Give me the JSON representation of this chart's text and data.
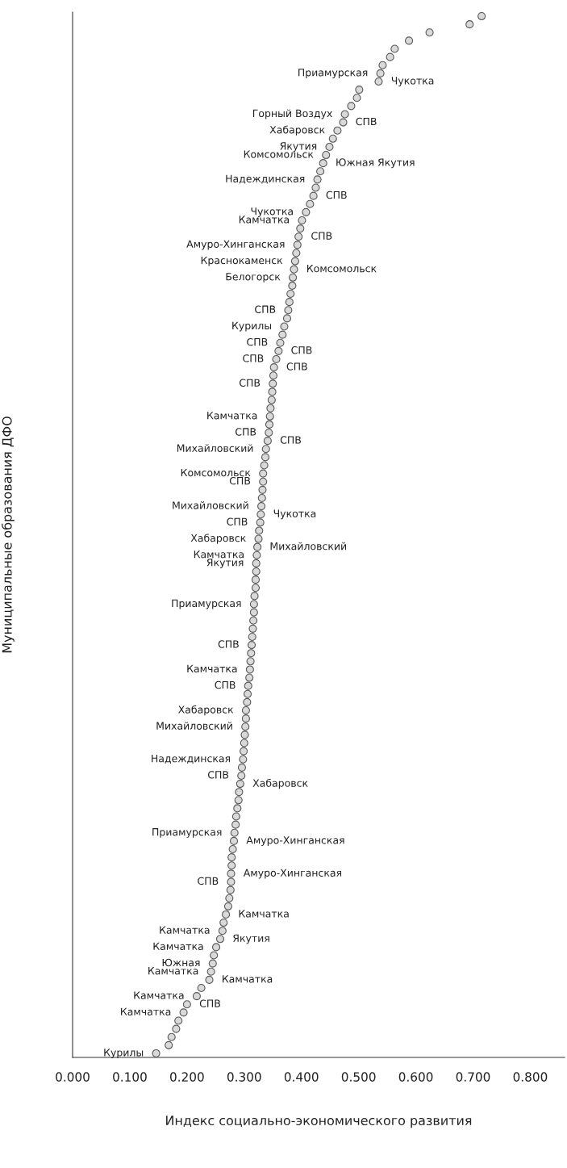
{
  "chart_data": {
    "type": "scatter",
    "orientation": "horizontal",
    "marker": "circle",
    "tick_labels": "x",
    "xlabel": "Индекс социально-экономического развития",
    "ylabel": "Муниципальные образования ДФО",
    "xlim": [
      0,
      0.86
    ],
    "xticks": [
      {
        "value": 0,
        "label": "0.000"
      },
      {
        "value": 0.1,
        "label": "0.100"
      },
      {
        "value": 0.2,
        "label": "0.200"
      },
      {
        "value": 0.3,
        "label": "0.300"
      },
      {
        "value": 0.4,
        "label": "0.400"
      },
      {
        "value": 0.5,
        "label": "0.500"
      },
      {
        "value": 0.6,
        "label": "0.600"
      },
      {
        "value": 0.7,
        "label": "0.700"
      },
      {
        "value": 0.8,
        "label": "0.800"
      }
    ],
    "categories": [
      null,
      null,
      null,
      null,
      null,
      null,
      null,
      null,
      null,
      null,
      null,
      null,
      null,
      null,
      null,
      null,
      null,
      null,
      null,
      null,
      null,
      null,
      null,
      null,
      null,
      null,
      null,
      null,
      null,
      null,
      null,
      null,
      null,
      null,
      null,
      null,
      null,
      null,
      null,
      null,
      null,
      null,
      null,
      null,
      null,
      null,
      null,
      null,
      null,
      null,
      null,
      null,
      null,
      null,
      null,
      null,
      null,
      null,
      null,
      null,
      null,
      null,
      null,
      null,
      null,
      null,
      null,
      null,
      null,
      null,
      null,
      null,
      null,
      null,
      null,
      null,
      null,
      null,
      null,
      null,
      null,
      null,
      null,
      null,
      null,
      null,
      null,
      null,
      null,
      null,
      null,
      null,
      null,
      null,
      null,
      null,
      null,
      null,
      null,
      null,
      null,
      null,
      null,
      null,
      null,
      null,
      null,
      null,
      null,
      null,
      null,
      null,
      null,
      null,
      null,
      null,
      null,
      null,
      null,
      null,
      null,
      null,
      null,
      null,
      null,
      null,
      null,
      null
    ],
    "series": [
      {
        "color": "#d9d9d9",
        "values": [
          0.715,
          0.694,
          0.624,
          0.588,
          0.563,
          0.555,
          0.542,
          0.538,
          null,
          0.501,
          0.497,
          0.487,
          0.476,
          null,
          0.463,
          0.455,
          0.449,
          0.443,
          null,
          0.433,
          0.428,
          0.425,
          null,
          0.415,
          0.408,
          0.401,
          0.398,
          null,
          0.393,
          0.391,
          0.389,
          null,
          0.385,
          0.384,
          0.381,
          0.379,
          0.377,
          0.375,
          0.37,
          0.367,
          0.363,
          null,
          0.356,
          null,
          0.351,
          0.35,
          0.349,
          0.348,
          0.346,
          0.345,
          0.344,
          0.343,
          null,
          0.338,
          0.337,
          0.335,
          0.333,
          0.333,
          0.332,
          0.331,
          0.33,
          null,
          0.328,
          0.326,
          0.325,
          null,
          0.322,
          0.321,
          0.321,
          0.32,
          0.32,
          0.318,
          0.317,
          0.317,
          0.316,
          0.315,
          0.314,
          0.313,
          0.312,
          0.311,
          0.31,
          0.309,
          0.307,
          0.306,
          0.305,
          0.303,
          0.303,
          0.302,
          0.301,
          0.3,
          0.299,
          0.298,
          0.296,
          0.295,
          null,
          0.291,
          0.29,
          0.288,
          0.286,
          0.285,
          0.283,
          null,
          0.28,
          0.278,
          0.278,
          null,
          0.277,
          0.276,
          0.274,
          0.272,
          null,
          0.264,
          0.262,
          null,
          0.251,
          0.247,
          0.245,
          0.242,
          null,
          0.225,
          0.217,
          null,
          0.194,
          0.185,
          0.181,
          0.173,
          0.168,
          0.146
        ],
        "value_labels": [
          null,
          null,
          null,
          null,
          null,
          null,
          null,
          "Приамурская",
          null,
          null,
          null,
          null,
          "Горный Воздух",
          null,
          "Хабаровск",
          null,
          "Якутия",
          "Комсомольск",
          null,
          null,
          "Надеждинская",
          null,
          null,
          null,
          "Чукотка",
          "Камчатка",
          null,
          null,
          "Амуро-Хинганская",
          null,
          "Краснокаменск",
          null,
          "Белогорск",
          null,
          null,
          null,
          "СПВ",
          null,
          "Курилы",
          null,
          "СПВ",
          null,
          "СПВ",
          null,
          null,
          "СПВ",
          null,
          null,
          null,
          "Камчатка",
          null,
          "СПВ",
          null,
          "Михайловский",
          null,
          null,
          "Комсомольск",
          "СПВ",
          null,
          null,
          "Михайловский",
          null,
          "СПВ",
          null,
          "Хабаровск",
          null,
          "Камчатка",
          "Якутия",
          null,
          null,
          null,
          null,
          "Приамурская",
          null,
          null,
          null,
          null,
          "СПВ",
          null,
          null,
          "Камчатка",
          null,
          "СПВ",
          null,
          null,
          "Хабаровск",
          null,
          "Михайловский",
          null,
          null,
          null,
          "Надеждинская",
          null,
          "СПВ",
          null,
          null,
          null,
          null,
          null,
          null,
          "Приамурская",
          null,
          null,
          null,
          null,
          null,
          "СПВ",
          null,
          null,
          null,
          null,
          null,
          "Камчатка",
          null,
          "Камчатка",
          null,
          "Южная",
          "Камчатка",
          null,
          null,
          "Камчатка",
          null,
          "Камчатка",
          null,
          null,
          null,
          null,
          "Курилы"
        ]
      },
      {
        "color": "#d9d9d9",
        "values": [
          null,
          null,
          null,
          null,
          null,
          null,
          null,
          null,
          0.535,
          null,
          null,
          null,
          null,
          0.473,
          null,
          null,
          null,
          null,
          0.438,
          null,
          null,
          null,
          0.421,
          null,
          null,
          null,
          null,
          0.395,
          null,
          null,
          null,
          0.387,
          null,
          null,
          null,
          null,
          null,
          null,
          null,
          null,
          null,
          0.36,
          null,
          0.352,
          null,
          null,
          null,
          null,
          null,
          null,
          null,
          null,
          0.341,
          null,
          null,
          null,
          null,
          null,
          null,
          null,
          null,
          0.329,
          null,
          null,
          null,
          0.323,
          null,
          null,
          null,
          null,
          null,
          null,
          null,
          null,
          null,
          null,
          null,
          null,
          null,
          null,
          null,
          null,
          null,
          null,
          null,
          null,
          null,
          null,
          null,
          null,
          null,
          null,
          null,
          null,
          0.293,
          null,
          null,
          null,
          null,
          null,
          null,
          0.282,
          null,
          null,
          null,
          0.277,
          null,
          null,
          null,
          null,
          0.268,
          null,
          null,
          0.258,
          null,
          null,
          null,
          null,
          0.239,
          null,
          null,
          0.2,
          null,
          null,
          null,
          null,
          null,
          null
        ],
        "value_labels": [
          null,
          null,
          null,
          null,
          null,
          null,
          null,
          null,
          "Чукотка",
          null,
          null,
          null,
          null,
          "СПВ",
          null,
          null,
          null,
          null,
          "Южная Якутия",
          null,
          null,
          null,
          "СПВ",
          null,
          null,
          null,
          null,
          "СПВ",
          null,
          null,
          null,
          "Комсомольск",
          null,
          null,
          null,
          null,
          null,
          null,
          null,
          null,
          null,
          "СПВ",
          null,
          "СПВ",
          null,
          null,
          null,
          null,
          null,
          null,
          null,
          null,
          "СПВ",
          null,
          null,
          null,
          null,
          null,
          null,
          null,
          null,
          "Чукотка",
          null,
          null,
          null,
          "Михайловский",
          null,
          null,
          null,
          null,
          null,
          null,
          null,
          null,
          null,
          null,
          null,
          null,
          null,
          null,
          null,
          null,
          null,
          null,
          null,
          null,
          null,
          null,
          null,
          null,
          null,
          null,
          null,
          null,
          "Хабаровск",
          null,
          null,
          null,
          null,
          null,
          null,
          "Амуро-Хинганская",
          null,
          null,
          null,
          "Амуро-Хинганская",
          null,
          null,
          null,
          null,
          "Камчатка",
          null,
          null,
          "Якутия",
          null,
          null,
          null,
          null,
          "Камчатка",
          null,
          null,
          "СПВ",
          null,
          null,
          null,
          null,
          null,
          null
        ]
      }
    ]
  }
}
